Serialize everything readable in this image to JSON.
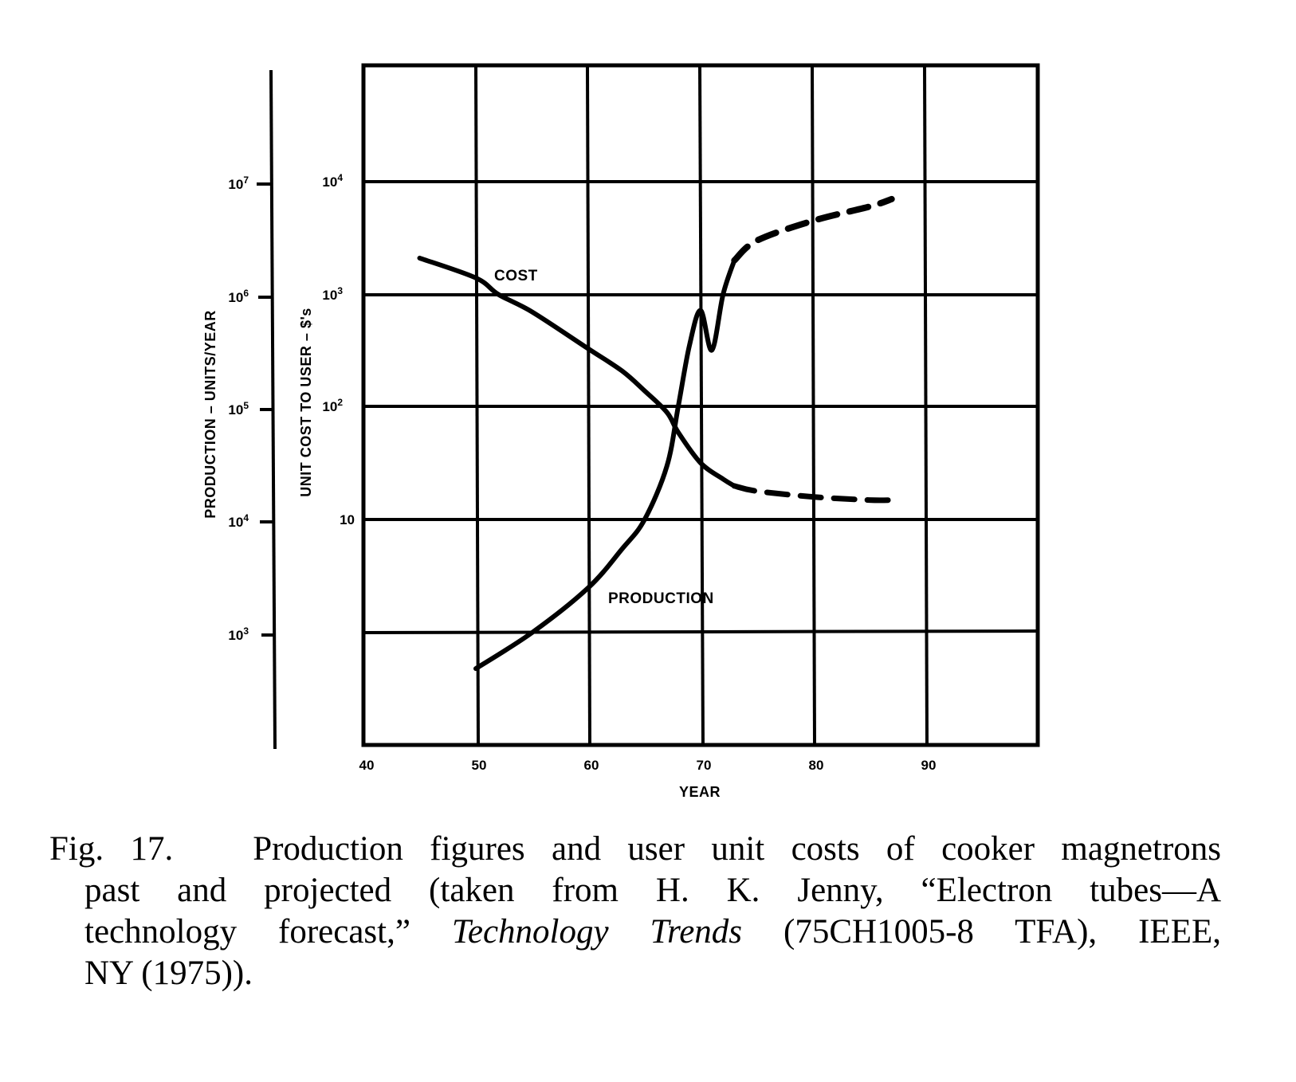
{
  "chart_data": {
    "type": "line",
    "title": "Production figures and user unit costs of cooker magnetrons past and projected",
    "xlabel": "YEAR",
    "ylabel_left_outer": "PRODUCTION – UNITS/YEAR",
    "ylabel_left_inner": "UNIT COST TO USER – $'s",
    "x_ticks": [
      "40",
      "50",
      "60",
      "70",
      "80",
      "90"
    ],
    "xlim": [
      40,
      100
    ],
    "y_scale": "log",
    "production_ticks": [
      "10³",
      "10⁴",
      "10⁵",
      "10⁶",
      "10⁷"
    ],
    "production_ylim": [
      100,
      10000000
    ],
    "cost_ticks": [
      "10",
      "10²",
      "10³",
      "10⁴"
    ],
    "cost_ylim": [
      0.1,
      10000
    ],
    "grid": true,
    "legend": "none (curves labeled inline)",
    "series": [
      {
        "name": "COST",
        "axis": "unit cost ($)",
        "style": "solid to ~1973, dashed (projected) after",
        "x": [
          45,
          50,
          52,
          55,
          60,
          63,
          65,
          67,
          68,
          70,
          72,
          73,
          75,
          80,
          85,
          87
        ],
        "values": [
          2100,
          1400,
          1000,
          700,
          330,
          210,
          140,
          90,
          60,
          32,
          23,
          20,
          18,
          16,
          15,
          15
        ],
        "projected_from_x": 73
      },
      {
        "name": "PRODUCTION",
        "axis": "production (units/year)",
        "style": "solid to ~1973, dashed (projected) after",
        "x": [
          50,
          55,
          60,
          63,
          65,
          67,
          68,
          69,
          70,
          71,
          72,
          73,
          75,
          80,
          85,
          87
        ],
        "values": [
          480,
          1000,
          2500,
          5500,
          10000,
          30000,
          100000,
          350000,
          720000,
          320000,
          1000000,
          2000000,
          3000000,
          4500000,
          6000000,
          7000000
        ],
        "projected_from_x": 73
      }
    ],
    "annotations": [
      "COST",
      "PRODUCTION"
    ]
  },
  "axes": {
    "production": {
      "title": "PRODUCTION – UNITS/YEAR",
      "ticks": [
        {
          "label_base": "10",
          "label_exp": "7"
        },
        {
          "label_base": "10",
          "label_exp": "6"
        },
        {
          "label_base": "10",
          "label_exp": "5"
        },
        {
          "label_base": "10",
          "label_exp": "4"
        },
        {
          "label_base": "10",
          "label_exp": "3"
        }
      ]
    },
    "cost": {
      "title": "UNIT COST TO USER – $'s",
      "ticks": [
        {
          "label_base": "10",
          "label_exp": "4"
        },
        {
          "label_base": "10",
          "label_exp": "3"
        },
        {
          "label_base": "10",
          "label_exp": "2"
        },
        {
          "label_base": "10",
          "label_exp": ""
        }
      ]
    },
    "x": {
      "title": "YEAR",
      "ticks": [
        "40",
        "50",
        "60",
        "70",
        "80",
        "90"
      ]
    }
  },
  "labels": {
    "cost_curve": "COST",
    "production_curve": "PRODUCTION"
  },
  "caption": {
    "fig_label": "Fig. 17.",
    "line1": "Production figures and user unit costs of cooker magnetrons",
    "line2": "past and projected (taken from H. K. Jenny, “Electron tubes—A",
    "line3_pre": "technology forecast,”",
    "line3_italic": "Technology Trends",
    "line3_post": "(75CH1005-8 TFA), IEEE,",
    "line4": "NY (1975))."
  }
}
